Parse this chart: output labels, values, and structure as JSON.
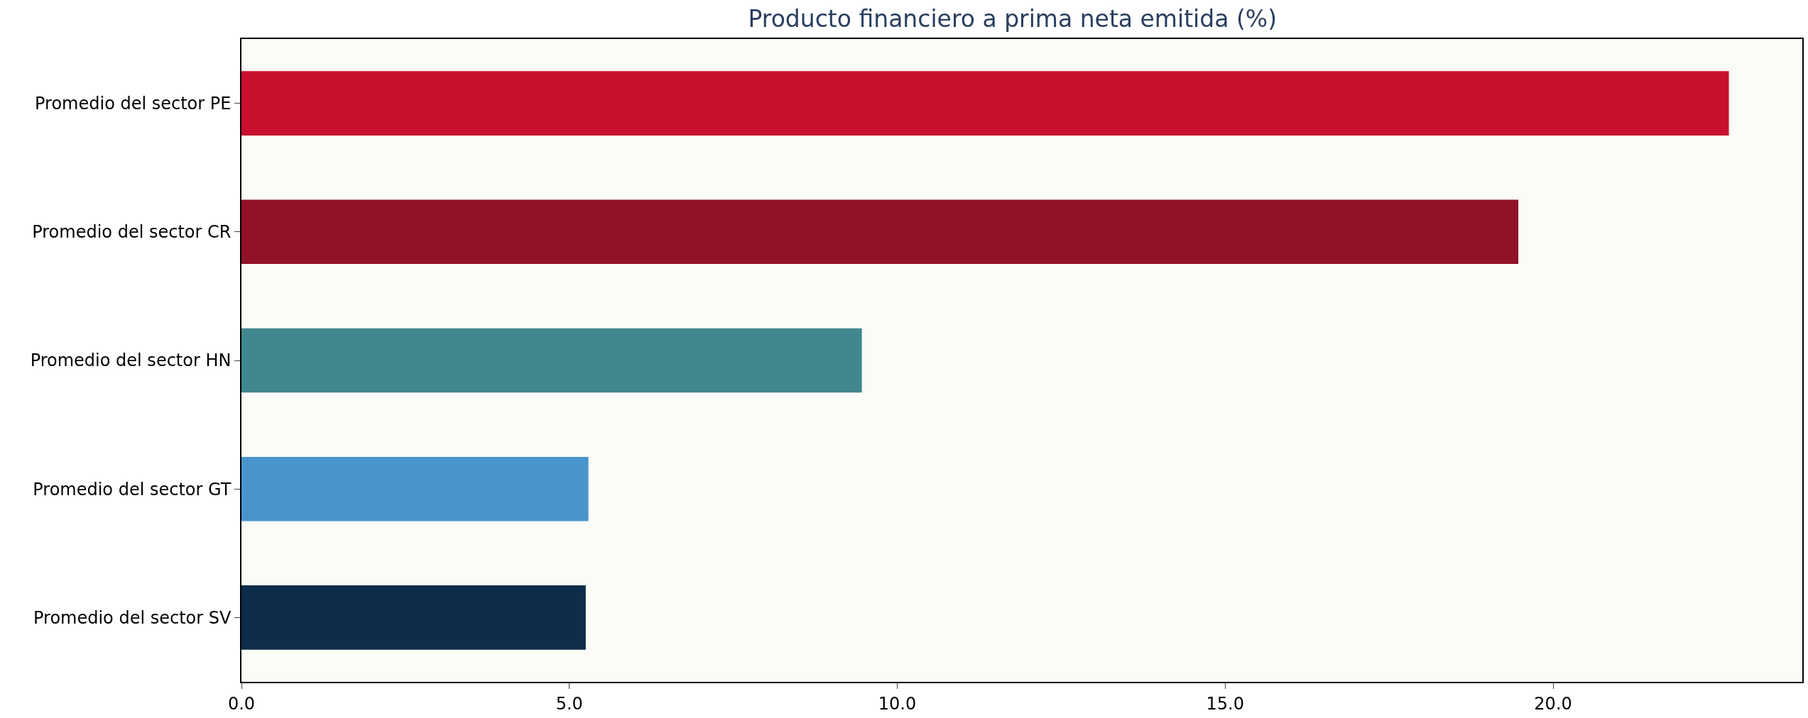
{
  "chart_data": {
    "type": "bar",
    "orientation": "horizontal",
    "title": "Producto financiero a prima neta emitida (%)",
    "categories": [
      "Promedio del sector PE",
      "Promedio del sector CR",
      "Promedio del sector HN",
      "Promedio del sector GT",
      "Promedio del sector SV"
    ],
    "values": [
      22.68,
      19.47,
      9.46,
      5.29,
      5.25
    ],
    "colors": [
      "#c8102e",
      "#901226",
      "#40888d",
      "#4894cb",
      "#0d2d4a"
    ],
    "xlim": [
      0,
      23.8
    ],
    "xticks": [
      {
        "value": 0,
        "label": "0.0"
      },
      {
        "value": 5,
        "label": "5.0"
      },
      {
        "value": 10,
        "label": "10.0"
      },
      {
        "value": 15,
        "label": "15.0"
      },
      {
        "value": 20,
        "label": "20.0"
      }
    ],
    "grid": false,
    "legend": false
  }
}
